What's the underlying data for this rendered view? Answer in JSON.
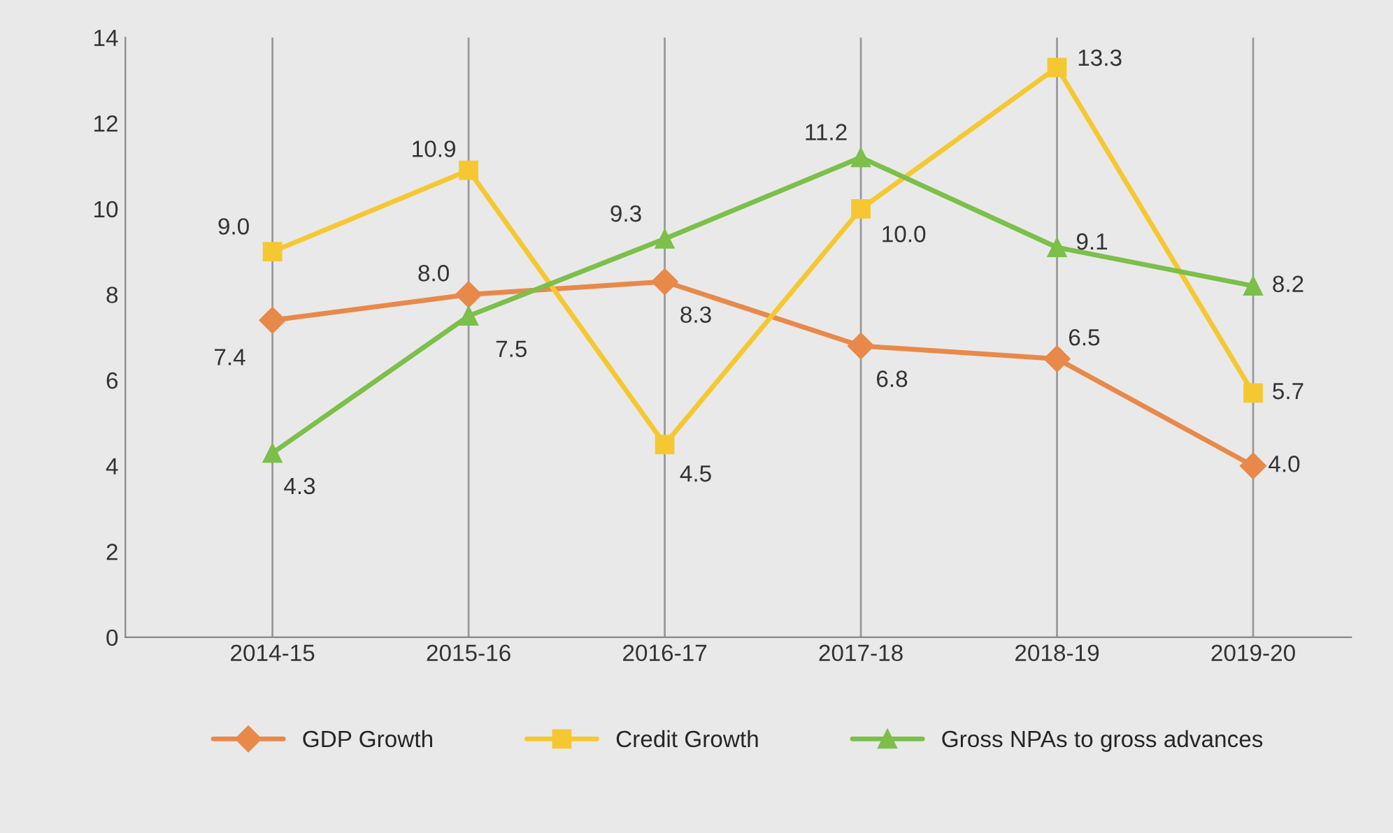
{
  "chart_data": {
    "type": "line",
    "categories": [
      "2014-15",
      "2015-16",
      "2016-17",
      "2017-18",
      "2018-19",
      "2019-20"
    ],
    "series": [
      {
        "name": "GDP Growth",
        "color": "#e8894a",
        "values": [
          7.4,
          8.0,
          8.3,
          6.8,
          6.5,
          4.0
        ],
        "value_labels": [
          "7.4",
          "8.0",
          "8.3",
          "6.8",
          "6.5",
          "4.0"
        ],
        "marker": "diamond"
      },
      {
        "name": "Credit Growth",
        "color": "#f5c832",
        "values": [
          9.0,
          10.9,
          4.5,
          10.0,
          13.3,
          5.7
        ],
        "value_labels": [
          "9.0",
          "10.9",
          "4.5",
          "10.0",
          "13.3",
          "5.7"
        ],
        "marker": "square"
      },
      {
        "name": "Gross NPAs to gross advances",
        "color": "#7cbf4a",
        "values": [
          4.3,
          7.5,
          9.3,
          11.2,
          9.1,
          8.2
        ],
        "value_labels": [
          "4.3",
          "7.5",
          "9.3",
          "11.2",
          "9.1",
          "8.2"
        ],
        "marker": "triangle"
      }
    ],
    "ylim": [
      0,
      14
    ],
    "yticks": [
      0,
      2,
      4,
      6,
      8,
      10,
      12,
      14
    ],
    "grid": "x",
    "legend": "bottom",
    "line_style": "solid"
  }
}
